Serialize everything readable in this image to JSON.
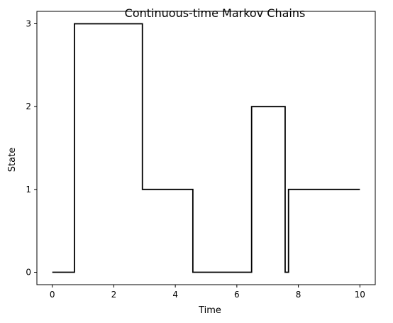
{
  "chart_data": {
    "type": "line",
    "step": "post",
    "title": "Continuous-time Markov Chains",
    "xlabel": "Time",
    "ylabel": "State",
    "xlim": [
      -0.5,
      10.5
    ],
    "ylim": [
      -0.15,
      3.15
    ],
    "xticks": [
      0,
      2,
      4,
      6,
      8,
      10
    ],
    "yticks": [
      0,
      1,
      2,
      3
    ],
    "grid": false,
    "series": [
      {
        "color": "#000000",
        "x": [
          0,
          0.72,
          2.93,
          4.57,
          6.48,
          7.57,
          7.68,
          10
        ],
        "y": [
          0,
          3,
          1,
          0,
          2,
          0,
          1,
          1
        ]
      }
    ]
  }
}
